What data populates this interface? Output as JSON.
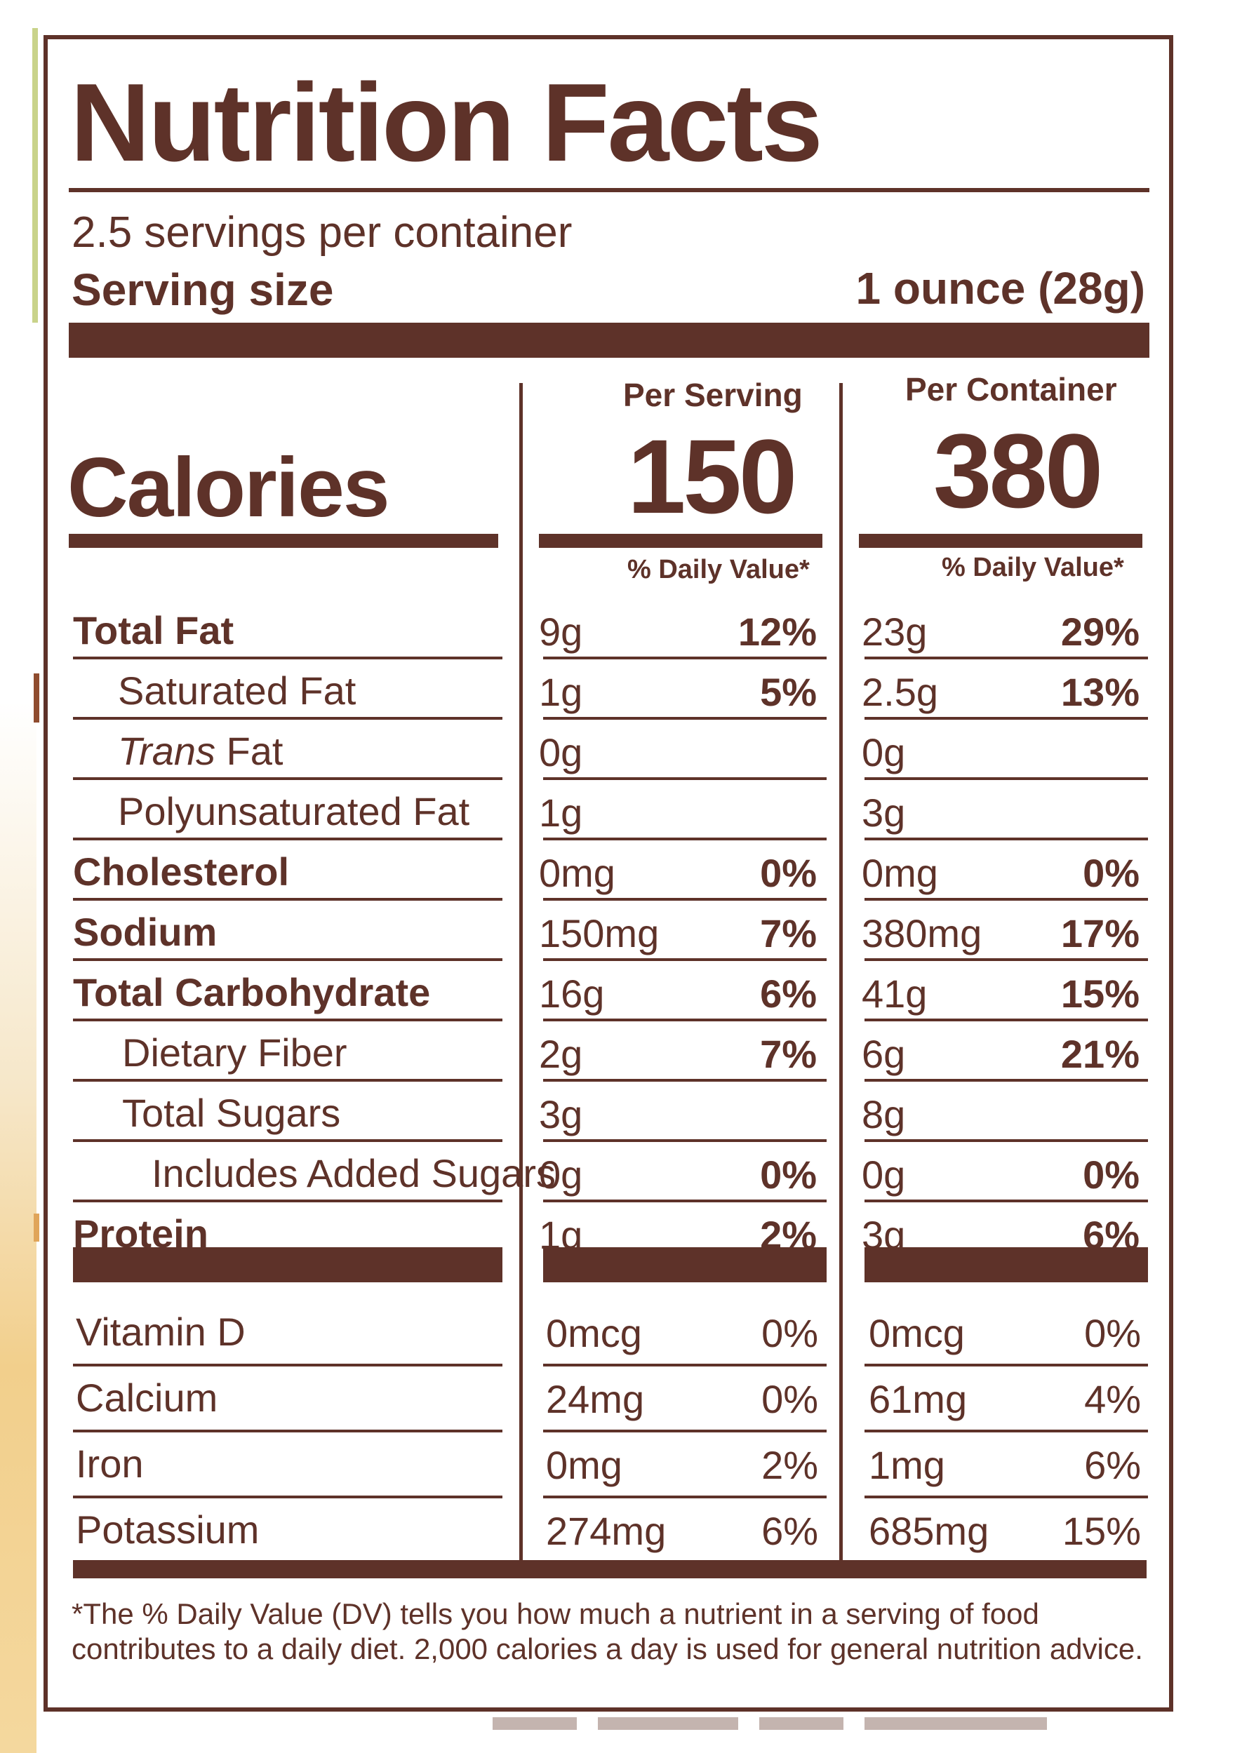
{
  "title": "Nutrition Facts",
  "servings_per_container": "2.5 servings per container",
  "serving_size_label": "Serving size",
  "serving_size_value": "1 ounce (28g)",
  "calories_label": "Calories",
  "per_serving_label": "Per Serving",
  "per_container_label": "Per Container",
  "calories_per_serving": "150",
  "calories_per_container": "380",
  "daily_value_header": "% Daily Value*",
  "nutrients": [
    {
      "name": "Total Fat",
      "serving_amount": "9g",
      "serving_dv": "12%",
      "container_amount": "23g",
      "container_dv": "29%"
    },
    {
      "name": "Saturated Fat",
      "serving_amount": "1g",
      "serving_dv": "5%",
      "container_amount": "2.5g",
      "container_dv": "13%"
    },
    {
      "name_italic": "Trans",
      "name_rest": " Fat",
      "serving_amount": "0g",
      "serving_dv": "",
      "container_amount": "0g",
      "container_dv": ""
    },
    {
      "name": "Polyunsaturated Fat",
      "serving_amount": "1g",
      "serving_dv": "",
      "container_amount": "3g",
      "container_dv": ""
    },
    {
      "name": "Cholesterol",
      "serving_amount": "0mg",
      "serving_dv": "0%",
      "container_amount": "0mg",
      "container_dv": "0%"
    },
    {
      "name": "Sodium",
      "serving_amount": "150mg",
      "serving_dv": "7%",
      "container_amount": "380mg",
      "container_dv": "17%"
    },
    {
      "name": "Total Carbohydrate",
      "serving_amount": "16g",
      "serving_dv": "6%",
      "container_amount": "41g",
      "container_dv": "15%"
    },
    {
      "name": "Dietary Fiber",
      "serving_amount": "2g",
      "serving_dv": "7%",
      "container_amount": "6g",
      "container_dv": "21%"
    },
    {
      "name": "Total Sugars",
      "serving_amount": "3g",
      "serving_dv": "",
      "container_amount": "8g",
      "container_dv": ""
    },
    {
      "name": "Includes Added Sugars",
      "serving_amount": "0g",
      "serving_dv": "0%",
      "container_amount": "0g",
      "container_dv": "0%"
    },
    {
      "name": "Protein",
      "serving_amount": "1g",
      "serving_dv": "2%",
      "container_amount": "3g",
      "container_dv": "6%"
    }
  ],
  "vitamins": [
    {
      "name": "Vitamin D",
      "serving_amount": "0mcg",
      "serving_dv": "0%",
      "container_amount": "0mcg",
      "container_dv": "0%"
    },
    {
      "name": "Calcium",
      "serving_amount": "24mg",
      "serving_dv": "0%",
      "container_amount": "61mg",
      "container_dv": "4%"
    },
    {
      "name": "Iron",
      "serving_amount": "0mg",
      "serving_dv": "2%",
      "container_amount": "1mg",
      "container_dv": "6%"
    },
    {
      "name": "Potassium",
      "serving_amount": "274mg",
      "serving_dv": "6%",
      "container_amount": "685mg",
      "container_dv": "15%"
    }
  ],
  "footnote": "*The % Daily Value (DV) tells you how much a nutrient in a serving of food contributes to a daily diet. 2,000 calories a day is used for general nutrition advice.",
  "colors": {
    "ink": "#5e3229",
    "background": "#ffffff"
  }
}
